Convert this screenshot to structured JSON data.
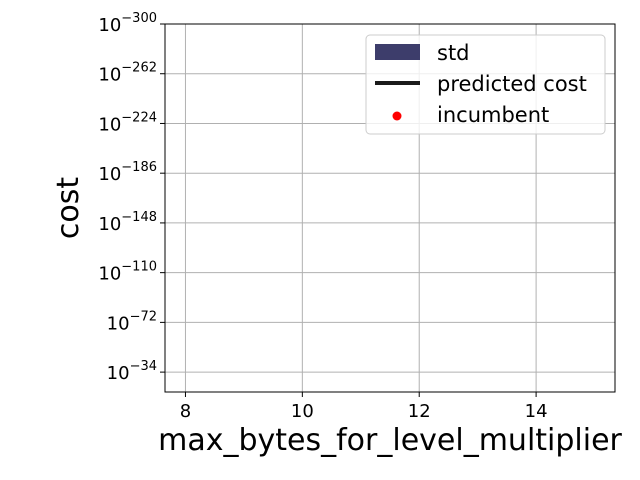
{
  "chart_data": {
    "type": "line",
    "title": "",
    "xlabel": "max_bytes_for_level_multiplier",
    "ylabel": "cost",
    "xlim": [
      7.65,
      15.35
    ],
    "x_ticks": [
      8,
      10,
      12,
      14
    ],
    "x_tick_labels": [
      "8",
      "10",
      "12",
      "14"
    ],
    "y_scale": "log",
    "y_tick_exponents": [
      -300,
      -262,
      -224,
      -186,
      -148,
      -110,
      -72,
      -34
    ],
    "y_tick_base": "10",
    "y_tick_labels": [
      "−300",
      "−262",
      "−224",
      "−186",
      "−148",
      "−110",
      "−72",
      "−34"
    ],
    "grid": true,
    "legend": {
      "placement": "top-right",
      "entries": [
        {
          "label": "std",
          "kind": "patch",
          "color": "#3d3d6b"
        },
        {
          "label": "predicted cost",
          "kind": "line",
          "color": "#1a1a1a"
        },
        {
          "label": "incumbent",
          "kind": "point",
          "color": "#ff0000"
        }
      ]
    },
    "series": [
      {
        "name": "std",
        "values": []
      },
      {
        "name": "predicted cost",
        "values": []
      },
      {
        "name": "incumbent",
        "values": []
      }
    ]
  }
}
